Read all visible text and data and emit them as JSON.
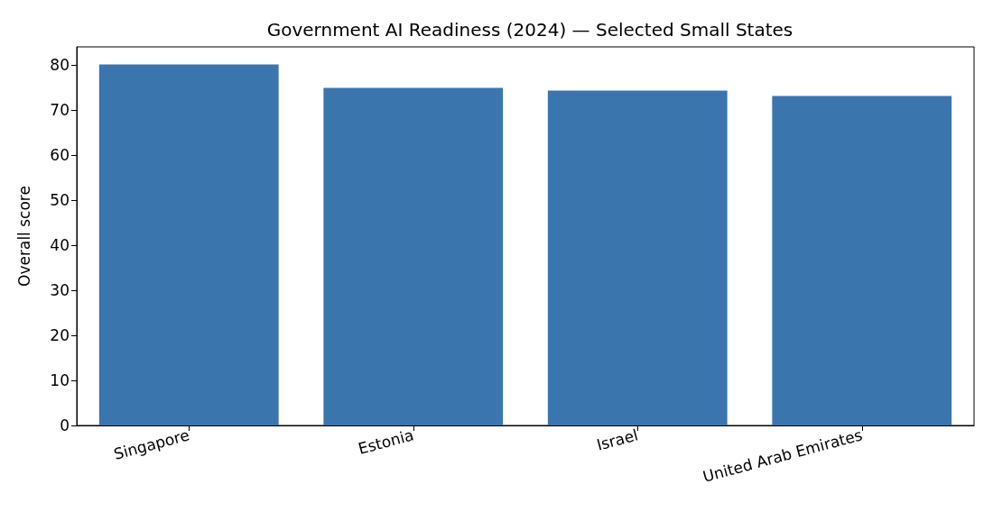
{
  "chart_data": {
    "type": "bar",
    "title": "Government AI Readiness (2024) — Selected Small States",
    "ylabel": "Overall score",
    "categories": [
      "Singapore",
      "Estonia",
      "Israel",
      "United Arab Emirates"
    ],
    "values": [
      80.1,
      74.9,
      74.3,
      73.1
    ],
    "color": "#3a75ae",
    "ylim": [
      0,
      84
    ],
    "yticks": [
      0,
      10,
      20,
      30,
      40,
      50,
      60,
      70,
      80
    ],
    "grid": false
  }
}
